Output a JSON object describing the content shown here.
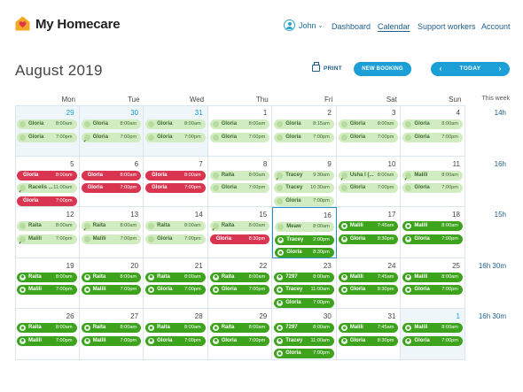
{
  "app": {
    "name": "My Homecare"
  },
  "header": {
    "user_name": "John",
    "nav": [
      {
        "label": "Dashboard",
        "active": false
      },
      {
        "label": "Calendar",
        "active": true
      },
      {
        "label": "Support workers",
        "active": false
      },
      {
        "label": "Account",
        "active": false
      }
    ]
  },
  "toolbar": {
    "month_title": "August 2019",
    "print_label": "PRINT",
    "new_booking_label": "NEW BOOKING",
    "today_label": "TODAY",
    "prev_icon": "chevron-left-icon",
    "next_icon": "chevron-right-icon"
  },
  "calendar": {
    "day_headers": [
      "Mon",
      "Tue",
      "Wed",
      "Thu",
      "Fri",
      "Sat",
      "Sun"
    ],
    "this_week_label": "This week",
    "weeks": [
      {
        "total": "14h",
        "days": [
          {
            "num": "29",
            "blue": true,
            "shaded": true,
            "events": [
              {
                "name": "Gloria",
                "time": "8:00am",
                "style": "light"
              },
              {
                "name": "Gloria",
                "time": "7:00pm",
                "style": "light"
              }
            ]
          },
          {
            "num": "30",
            "blue": true,
            "shaded": true,
            "events": [
              {
                "name": "Gloria",
                "time": "8:00am",
                "style": "light"
              },
              {
                "name": "Gloria",
                "time": "7:00pm",
                "style": "light",
                "check": true
              }
            ]
          },
          {
            "num": "31",
            "blue": true,
            "shaded": true,
            "events": [
              {
                "name": "Gloria",
                "time": "8:00am",
                "style": "light"
              },
              {
                "name": "Gloria",
                "time": "7:00pm",
                "style": "light"
              }
            ]
          },
          {
            "num": "1",
            "events": [
              {
                "name": "Gloria",
                "time": "8:00am",
                "style": "light"
              },
              {
                "name": "Gloria",
                "time": "7:00pm",
                "style": "light"
              }
            ]
          },
          {
            "num": "2",
            "events": [
              {
                "name": "Gloria",
                "time": "8:15am",
                "style": "light"
              },
              {
                "name": "Gloria",
                "time": "7:00pm",
                "style": "light"
              }
            ]
          },
          {
            "num": "3",
            "events": [
              {
                "name": "Gloria",
                "time": "8:00am",
                "style": "light"
              },
              {
                "name": "Gloria",
                "time": "7:00pm",
                "style": "light"
              }
            ]
          },
          {
            "num": "4",
            "events": [
              {
                "name": "Gloria",
                "time": "8:00am",
                "style": "light"
              },
              {
                "name": "Gloria",
                "time": "7:00pm",
                "style": "light"
              }
            ]
          }
        ]
      },
      {
        "total": "16h",
        "days": [
          {
            "num": "5",
            "events": [
              {
                "name": "Gloria",
                "time": "8:00am",
                "style": "red"
              },
              {
                "name": "Racelis ...",
                "time": "11:00am",
                "style": "light",
                "check": true
              },
              {
                "name": "Gloria",
                "time": "7:00pm",
                "style": "red"
              }
            ]
          },
          {
            "num": "6",
            "events": [
              {
                "name": "Gloria",
                "time": "8:00am",
                "style": "red"
              },
              {
                "name": "Gloria",
                "time": "7:00pm",
                "style": "red"
              }
            ]
          },
          {
            "num": "7",
            "events": [
              {
                "name": "Gloria",
                "time": "8:00am",
                "style": "red"
              },
              {
                "name": "Gloria",
                "time": "7:00pm",
                "style": "red"
              }
            ]
          },
          {
            "num": "8",
            "events": [
              {
                "name": "Raita",
                "time": "8:00am",
                "style": "light"
              },
              {
                "name": "Gloria",
                "time": "7:00pm",
                "style": "light"
              }
            ]
          },
          {
            "num": "9",
            "events": [
              {
                "name": "Tracey",
                "time": "9:30am",
                "style": "light",
                "check": true
              },
              {
                "name": "Tracey",
                "time": "10:30am",
                "style": "light"
              },
              {
                "name": "Gloria",
                "time": "7:00pm",
                "style": "light"
              }
            ]
          },
          {
            "num": "10",
            "events": [
              {
                "name": "Usha I (...",
                "time": "8:00am",
                "style": "light",
                "check": true
              },
              {
                "name": "Gloria",
                "time": "7:00pm",
                "style": "light"
              }
            ]
          },
          {
            "num": "11",
            "events": [
              {
                "name": "Malili",
                "time": "8:00am",
                "style": "light",
                "check": true
              },
              {
                "name": "Gloria",
                "time": "7:00pm",
                "style": "light"
              }
            ]
          }
        ]
      },
      {
        "total": "15h",
        "days": [
          {
            "num": "12",
            "events": [
              {
                "name": "Raita",
                "time": "8:00am",
                "style": "light"
              },
              {
                "name": "Malili",
                "time": "7:00pm",
                "style": "light",
                "check": true
              }
            ]
          },
          {
            "num": "13",
            "events": [
              {
                "name": "Raita",
                "time": "8:00am",
                "style": "light",
                "check": true
              },
              {
                "name": "Malili",
                "time": "7:00pm",
                "style": "light"
              }
            ]
          },
          {
            "num": "14",
            "events": [
              {
                "name": "Raita",
                "time": "8:00am",
                "style": "light"
              },
              {
                "name": "Gloria",
                "time": "7:00pm",
                "style": "light"
              }
            ]
          },
          {
            "num": "15",
            "events": [
              {
                "name": "Raita",
                "time": "8:00am",
                "style": "light",
                "check": true
              },
              {
                "name": "Gloria",
                "time": "8:30pm",
                "style": "red"
              }
            ]
          },
          {
            "num": "16",
            "today": true,
            "events": [
              {
                "name": "Meaw",
                "time": "8:00am",
                "style": "light"
              },
              {
                "name": "Tracey",
                "time": "2:00pm",
                "style": "dark"
              },
              {
                "name": "Gloria",
                "time": "8:30pm",
                "style": "dark"
              }
            ]
          },
          {
            "num": "17",
            "events": [
              {
                "name": "Malili",
                "time": "7:45am",
                "style": "dark"
              },
              {
                "name": "Gloria",
                "time": "8:30pm",
                "style": "dark"
              }
            ]
          },
          {
            "num": "18",
            "events": [
              {
                "name": "Malili",
                "time": "8:00am",
                "style": "dark"
              },
              {
                "name": "Gloria",
                "time": "7:00pm",
                "style": "dark"
              }
            ]
          }
        ]
      },
      {
        "total": "16h 30m",
        "days": [
          {
            "num": "19",
            "events": [
              {
                "name": "Raita",
                "time": "8:00am",
                "style": "dark"
              },
              {
                "name": "Malili",
                "time": "7:00pm",
                "style": "dark"
              }
            ]
          },
          {
            "num": "20",
            "events": [
              {
                "name": "Raita",
                "time": "8:00am",
                "style": "dark"
              },
              {
                "name": "Malili",
                "time": "7:00pm",
                "style": "dark"
              }
            ]
          },
          {
            "num": "21",
            "events": [
              {
                "name": "Raita",
                "time": "8:00am",
                "style": "dark"
              },
              {
                "name": "Gloria",
                "time": "7:00pm",
                "style": "dark"
              }
            ]
          },
          {
            "num": "22",
            "events": [
              {
                "name": "Raita",
                "time": "8:00am",
                "style": "dark"
              },
              {
                "name": "Gloria",
                "time": "7:00pm",
                "style": "dark"
              }
            ]
          },
          {
            "num": "23",
            "events": [
              {
                "name": "7297",
                "time": "8:00am",
                "style": "dark"
              },
              {
                "name": "Tracey",
                "time": "11:00am",
                "style": "dark"
              },
              {
                "name": "Gloria",
                "time": "7:00pm",
                "style": "dark"
              }
            ]
          },
          {
            "num": "24",
            "events": [
              {
                "name": "Malili",
                "time": "7:45am",
                "style": "dark"
              },
              {
                "name": "Gloria",
                "time": "8:30pm",
                "style": "dark"
              }
            ]
          },
          {
            "num": "25",
            "events": [
              {
                "name": "Malili",
                "time": "8:00am",
                "style": "dark"
              },
              {
                "name": "Gloria",
                "time": "7:00pm",
                "style": "dark"
              }
            ]
          }
        ]
      },
      {
        "total": "16h 30m",
        "days": [
          {
            "num": "26",
            "events": [
              {
                "name": "Raita",
                "time": "8:00am",
                "style": "dark"
              },
              {
                "name": "Malili",
                "time": "7:00pm",
                "style": "dark"
              }
            ]
          },
          {
            "num": "27",
            "events": [
              {
                "name": "Raita",
                "time": "8:00am",
                "style": "dark"
              },
              {
                "name": "Malili",
                "time": "7:00pm",
                "style": "dark"
              }
            ]
          },
          {
            "num": "28",
            "events": [
              {
                "name": "Raita",
                "time": "8:00am",
                "style": "dark"
              },
              {
                "name": "Gloria",
                "time": "7:00pm",
                "style": "dark"
              }
            ]
          },
          {
            "num": "29",
            "events": [
              {
                "name": "Raita",
                "time": "8:00am",
                "style": "dark"
              },
              {
                "name": "Gloria",
                "time": "7:00pm",
                "style": "dark"
              }
            ]
          },
          {
            "num": "30",
            "events": [
              {
                "name": "7297",
                "time": "8:00am",
                "style": "dark"
              },
              {
                "name": "Tracey",
                "time": "11:00am",
                "style": "dark"
              },
              {
                "name": "Gloria",
                "time": "7:00pm",
                "style": "dark"
              }
            ]
          },
          {
            "num": "31",
            "events": [
              {
                "name": "Malili",
                "time": "7:45am",
                "style": "dark"
              },
              {
                "name": "Gloria",
                "time": "8:30pm",
                "style": "dark"
              }
            ]
          },
          {
            "num": "1",
            "blue": true,
            "shaded": true,
            "events": [
              {
                "name": "Malili",
                "time": "8:00am",
                "style": "dark"
              },
              {
                "name": "Gloria",
                "time": "7:00pm",
                "style": "dark"
              }
            ]
          }
        ]
      }
    ]
  },
  "colors": {
    "accent": "#1b9fd6",
    "event_light": "#d2ecc2",
    "event_dark": "#3ea31c",
    "event_red": "#d93550",
    "logo_orange": "#f5a623",
    "logo_heart": "#e0334c"
  }
}
